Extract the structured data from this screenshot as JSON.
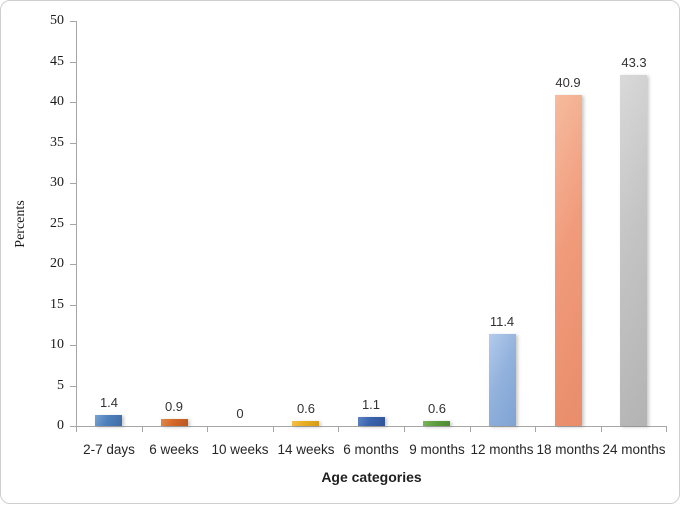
{
  "chart_data": {
    "type": "bar",
    "title": "",
    "categories": [
      "2-7 days",
      "6 weeks",
      "10 weeks",
      "14 weeks",
      "6 months",
      "9 months",
      "12 months",
      "18 months",
      "24 months"
    ],
    "values": [
      1.4,
      0.9,
      0,
      0.6,
      1.1,
      0.6,
      11.4,
      40.9,
      43.3
    ],
    "data_labels": [
      "1.4",
      "0.9",
      "0",
      "0.6",
      "1.1",
      "0.6",
      "11.4",
      "40.9",
      "43.3"
    ],
    "xlabel": "Age categories",
    "ylabel": "Percents",
    "ylim": [
      0,
      50
    ],
    "ytick_interval": 5,
    "yticks": [
      0,
      5,
      10,
      15,
      20,
      25,
      30,
      35,
      40,
      45,
      50
    ],
    "grid": false,
    "legend": "none",
    "axis_color": "#a6a6a6",
    "bar_colors": [
      {
        "light": "#7aa3d1",
        "base": "#4e80bc",
        "dark": "#3e6ca4"
      },
      {
        "light": "#e18a4c",
        "base": "#d4682a",
        "dark": "#b95720"
      },
      null,
      {
        "light": "#f3c14c",
        "base": "#e9ad24",
        "dark": "#d29a18"
      },
      {
        "light": "#5e82c4",
        "base": "#3a63ae",
        "dark": "#2f5398"
      },
      {
        "light": "#7cb55c",
        "base": "#5e9e3e",
        "dark": "#4e8a31"
      },
      {
        "light": "#b3cbec",
        "base": "#93b2dd",
        "dark": "#7fa3d3"
      },
      {
        "light": "#f6bb9e",
        "base": "#f09b7b",
        "dark": "#e98c69"
      },
      {
        "light": "#d9d9d9",
        "base": "#c4c4c4",
        "dark": "#b3b3b3"
      }
    ]
  }
}
